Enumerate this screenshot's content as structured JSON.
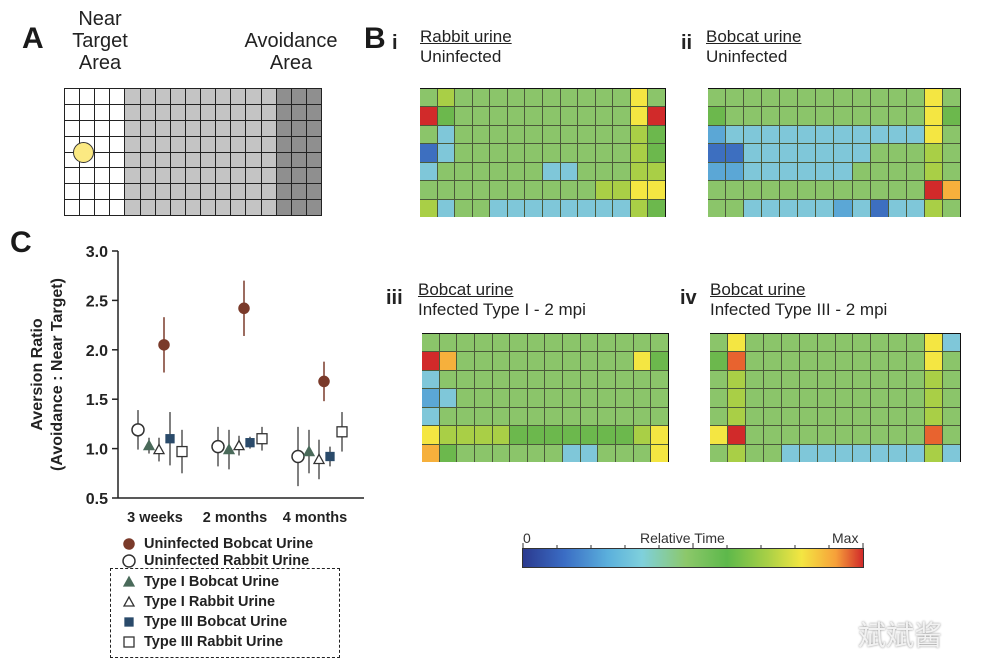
{
  "panelA": {
    "letter": "A",
    "near_label": [
      "Near",
      "Target",
      "Area"
    ],
    "avoid_label": [
      "Avoidance",
      "Area"
    ],
    "rows": 8,
    "near_cols": 4,
    "mid_cols": 10,
    "avoid_cols": 3,
    "colors": {
      "near": "#ffffff",
      "mid": "#c4c4c4",
      "avoid": "#8f8f8f",
      "target": "#fbe982"
    }
  },
  "panelB": {
    "letter": "B",
    "maps": [
      {
        "roman": "i",
        "title": "Rabbit urine",
        "subtitle": "Uninfected",
        "cells": [
          [
            4,
            6,
            4,
            4,
            4,
            4,
            4,
            4,
            4,
            4,
            4,
            4,
            7,
            4
          ],
          [
            10,
            5,
            4,
            4,
            4,
            4,
            4,
            4,
            4,
            4,
            4,
            4,
            7,
            10
          ],
          [
            4,
            3,
            4,
            4,
            4,
            4,
            4,
            4,
            4,
            4,
            4,
            4,
            6,
            5
          ],
          [
            1,
            3,
            4,
            4,
            4,
            4,
            4,
            4,
            4,
            4,
            4,
            4,
            6,
            5
          ],
          [
            3,
            4,
            4,
            4,
            4,
            4,
            4,
            3,
            3,
            4,
            4,
            4,
            6,
            6
          ],
          [
            4,
            4,
            4,
            4,
            4,
            4,
            4,
            4,
            4,
            4,
            6,
            6,
            7,
            7
          ],
          [
            6,
            3,
            4,
            4,
            3,
            3,
            3,
            3,
            3,
            3,
            3,
            3,
            6,
            5
          ]
        ]
      },
      {
        "roman": "ii",
        "title": "Bobcat urine",
        "subtitle": "Uninfected",
        "cells": [
          [
            4,
            4,
            4,
            4,
            4,
            4,
            4,
            4,
            4,
            4,
            4,
            4,
            7,
            4
          ],
          [
            5,
            4,
            4,
            4,
            4,
            4,
            4,
            4,
            4,
            4,
            4,
            4,
            7,
            5
          ],
          [
            2,
            3,
            3,
            3,
            3,
            3,
            3,
            3,
            3,
            3,
            3,
            3,
            7,
            4
          ],
          [
            1,
            1,
            3,
            3,
            3,
            3,
            3,
            3,
            3,
            4,
            4,
            4,
            6,
            4
          ],
          [
            2,
            2,
            3,
            3,
            3,
            3,
            3,
            3,
            4,
            4,
            4,
            4,
            6,
            4
          ],
          [
            4,
            4,
            4,
            4,
            4,
            4,
            4,
            4,
            4,
            4,
            4,
            4,
            10,
            8
          ],
          [
            4,
            4,
            3,
            3,
            3,
            3,
            3,
            2,
            3,
            1,
            3,
            3,
            6,
            4
          ]
        ]
      },
      {
        "roman": "iii",
        "title": "Bobcat urine",
        "subtitle": "Infected Type I - 2 mpi",
        "cells": [
          [
            4,
            4,
            4,
            4,
            4,
            4,
            4,
            4,
            4,
            4,
            4,
            4,
            4,
            4
          ],
          [
            10,
            8,
            4,
            4,
            4,
            4,
            4,
            4,
            4,
            4,
            4,
            4,
            7,
            5
          ],
          [
            3,
            4,
            4,
            4,
            4,
            4,
            4,
            4,
            4,
            4,
            4,
            4,
            4,
            4
          ],
          [
            2,
            3,
            4,
            4,
            4,
            4,
            4,
            4,
            4,
            4,
            4,
            4,
            4,
            4
          ],
          [
            3,
            4,
            4,
            4,
            4,
            4,
            4,
            4,
            4,
            4,
            4,
            4,
            4,
            4
          ],
          [
            7,
            6,
            6,
            6,
            6,
            5,
            5,
            5,
            5,
            5,
            5,
            5,
            6,
            7
          ],
          [
            8,
            5,
            4,
            4,
            4,
            4,
            4,
            4,
            3,
            3,
            4,
            4,
            4,
            7
          ]
        ]
      },
      {
        "roman": "iv",
        "title": "Bobcat urine",
        "subtitle": "Infected Type III - 2 mpi",
        "cells": [
          [
            4,
            7,
            4,
            4,
            4,
            4,
            4,
            4,
            4,
            4,
            4,
            4,
            7,
            3
          ],
          [
            5,
            9,
            4,
            4,
            4,
            4,
            4,
            4,
            4,
            4,
            4,
            4,
            7,
            4
          ],
          [
            4,
            6,
            4,
            4,
            4,
            4,
            4,
            4,
            4,
            4,
            4,
            4,
            6,
            4
          ],
          [
            4,
            6,
            4,
            4,
            4,
            4,
            4,
            4,
            4,
            4,
            4,
            4,
            6,
            4
          ],
          [
            4,
            6,
            4,
            4,
            4,
            4,
            4,
            4,
            4,
            4,
            4,
            4,
            6,
            4
          ],
          [
            7,
            10,
            4,
            4,
            4,
            4,
            4,
            4,
            4,
            4,
            4,
            4,
            9,
            4
          ],
          [
            4,
            6,
            4,
            4,
            3,
            3,
            3,
            3,
            3,
            3,
            3,
            3,
            6,
            3
          ]
        ]
      }
    ],
    "palette": [
      "#2b4aa0",
      "#3d6fc0",
      "#5ba7d6",
      "#7fc7d9",
      "#8bc56a",
      "#6cb84d",
      "#a9cf46",
      "#f4e642",
      "#f6b03c",
      "#e8632f",
      "#d12a2a"
    ],
    "colorbar": {
      "min_label": "0",
      "mid_label": "Relative Time",
      "max_label": "Max"
    }
  },
  "chart_data": {
    "type": "scatter",
    "panel_letter": "C",
    "ylabel": "Aversion Ratio",
    "ylabel2": "(Avoidance : Near Target)",
    "ylim": [
      0.5,
      3.0
    ],
    "yticks": [
      "3.0",
      "2.5",
      "2.0",
      "1.5",
      "1.0",
      "0.5"
    ],
    "categories": [
      "3 weeks",
      "2 months",
      "4 months"
    ],
    "series": [
      {
        "name": "Uninfected Bobcat Urine",
        "marker": "circle-filled",
        "color": "#7a3a2a",
        "values": [
          2.05,
          2.42,
          1.68
        ],
        "err": [
          0.28,
          0.28,
          0.2
        ]
      },
      {
        "name": "Uninfected Rabbit Urine",
        "marker": "circle-open",
        "color": "#333333",
        "values": [
          1.19,
          1.02,
          0.92
        ],
        "err": [
          0.2,
          0.2,
          0.3
        ]
      },
      {
        "name": "Type I Bobcat Urine",
        "marker": "triangle-filled",
        "color": "#4a6a5a",
        "values": [
          1.03,
          0.99,
          0.97
        ],
        "err": [
          0.08,
          0.2,
          0.22
        ]
      },
      {
        "name": "Type I Rabbit Urine",
        "marker": "triangle-open",
        "color": "#333333",
        "values": [
          0.99,
          1.03,
          0.89
        ],
        "err": [
          0.12,
          0.1,
          0.2
        ]
      },
      {
        "name": "Type III Bobcat Urine",
        "marker": "square-filled",
        "color": "#2a4a6a",
        "values": [
          1.1,
          1.06,
          0.92
        ],
        "err": [
          0.27,
          0.06,
          0.1
        ]
      },
      {
        "name": "Type III Rabbit Urine",
        "marker": "square-open",
        "color": "#333333",
        "values": [
          0.97,
          1.1,
          1.17
        ],
        "err": [
          0.22,
          0.12,
          0.2
        ]
      }
    ],
    "legend_grouped": [
      "Type I Bobcat Urine",
      "Type I Rabbit Urine",
      "Type III Bobcat Urine",
      "Type III Rabbit Urine"
    ]
  },
  "watermark": "斌斌酱"
}
